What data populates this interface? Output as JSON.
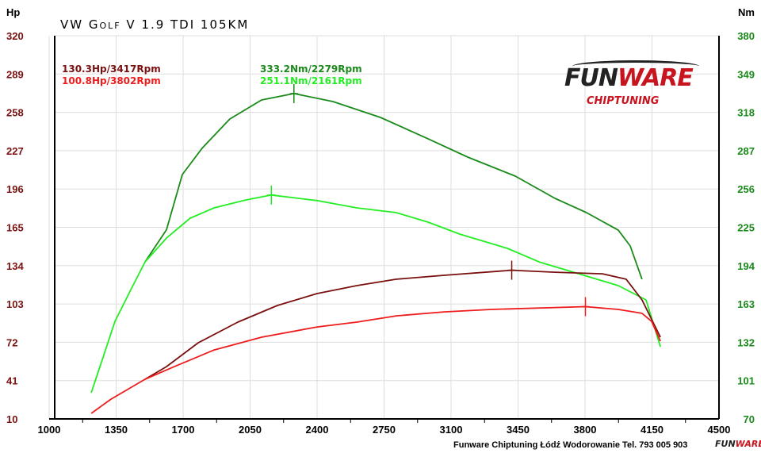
{
  "title": "VW Golf V 1.9 TDI 105KM",
  "footer": "Funware Chiptuning Łódź Wodorowanie Tel. 793 005 903",
  "logo": {
    "line1a": "FUN",
    "line1b": "WARE",
    "line2": "CHIPTUNING"
  },
  "annotations": {
    "tuned_hp": "130.3Hp/3417Rpm",
    "stock_hp": "100.8Hp/3802Rpm",
    "tuned_nm": "333.2Nm/2279Rpm",
    "stock_nm": "251.1Nm/2161Rpm"
  },
  "chart_data": {
    "type": "line",
    "title": "VW Golf V 1.9 TDI 105KM",
    "ylabel": "Hp",
    "y2label": "Nm",
    "xlim": [
      1000,
      4500
    ],
    "ylim": [
      10,
      320
    ],
    "y2lim": [
      70,
      380
    ],
    "grid": true,
    "xticks": [
      1000,
      1350,
      1700,
      2050,
      2400,
      2750,
      3100,
      3450,
      3800,
      4150,
      4500
    ],
    "yticks": [
      10,
      41,
      72,
      103,
      134,
      165,
      196,
      227,
      258,
      289,
      320
    ],
    "y2ticks": [
      70,
      101,
      132,
      163,
      194,
      225,
      256,
      287,
      318,
      349,
      380
    ],
    "series": [
      {
        "axis": "right",
        "color": "#1a8a1a",
        "peak": [
          2279,
          333.2
        ],
        "x": [
          1501,
          1613,
          1696,
          1799,
          1944,
          2110,
          2279,
          2483,
          2731,
          2980,
          3187,
          3436,
          3643,
          3808,
          3974,
          4036,
          4098
        ],
        "y": [
          197,
          223,
          267.7,
          288.9,
          312.6,
          328,
          333.2,
          326.7,
          313.9,
          296.6,
          281.8,
          266.4,
          248.4,
          236.9,
          222.7,
          209.9,
          183
        ]
      },
      {
        "axis": "right",
        "color": "#22ee22",
        "peak": [
          2161,
          251.1
        ],
        "x": [
          1220,
          1282,
          1344,
          1427,
          1501,
          1613,
          1737,
          1862,
          2027,
          2161,
          2400,
          2607,
          2814,
          2980,
          3146,
          3394,
          3560,
          3808,
          3974,
          4119,
          4194
        ],
        "y": [
          91.2,
          120,
          149,
          174.6,
          197,
          216.3,
          232.4,
          240.7,
          247.1,
          251.1,
          246.6,
          240.7,
          236.9,
          229.2,
          219.5,
          208,
          197,
          185.5,
          177.8,
          166.3,
          128.4
        ]
      },
      {
        "axis": "left",
        "color": "#7a1010",
        "peak": [
          3417,
          130.3
        ],
        "x": [
          1501,
          1613,
          1779,
          1986,
          2193,
          2400,
          2607,
          2814,
          3063,
          3417,
          3643,
          3891,
          4015,
          4098,
          4194
        ],
        "y": [
          42.1,
          52.3,
          71.6,
          88.3,
          101.8,
          111.4,
          117.8,
          123,
          126.2,
          130.3,
          128.7,
          127.4,
          123,
          106.3,
          76.1
        ]
      },
      {
        "axis": "left",
        "color": "#ee1c1c",
        "peak": [
          3802,
          100.8
        ],
        "x": [
          1220,
          1323,
          1501,
          1654,
          1862,
          2110,
          2400,
          2607,
          2814,
          3063,
          3311,
          3802,
          3974,
          4098,
          4148,
          4194
        ],
        "y": [
          14.5,
          26,
          42.1,
          52.3,
          65.8,
          76.1,
          84.4,
          88.3,
          93.4,
          96.6,
          98.6,
          100.8,
          98.6,
          95.4,
          88.9,
          72.9
        ]
      }
    ]
  }
}
